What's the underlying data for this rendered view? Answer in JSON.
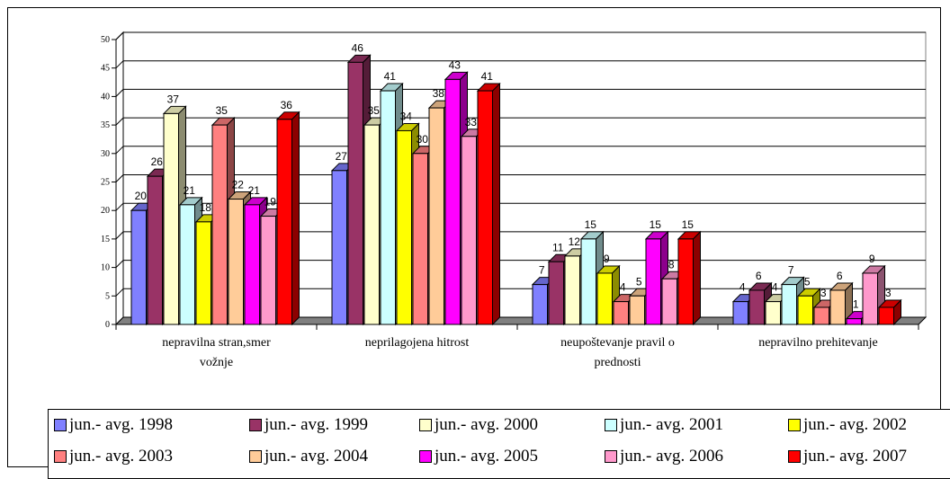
{
  "chart_data": {
    "type": "bar",
    "style": "3d-clustered-column",
    "categories": [
      [
        "nepravilna stran,smer",
        "vožnje"
      ],
      [
        "neprilagojena hitrost"
      ],
      [
        "neupoštevanje pravil o",
        "prednosti"
      ],
      [
        "nepravilno prehitevanje"
      ]
    ],
    "y_ticks": [
      "0",
      "5",
      "10",
      "15",
      "20",
      "25",
      "30",
      "35",
      "40",
      "45",
      "50"
    ],
    "ylim": [
      0,
      50
    ],
    "grid": true,
    "legend_position": "bottom",
    "series": [
      {
        "name": "jun.- avg. 1998",
        "color": "#8080ff",
        "values": [
          20,
          27,
          7,
          4
        ],
        "labels": [
          "20",
          "27",
          "7",
          "4"
        ]
      },
      {
        "name": "jun.- avg. 1999",
        "color": "#993366",
        "values": [
          26,
          46,
          11,
          6
        ],
        "labels": [
          "26",
          "46",
          "11",
          "6"
        ]
      },
      {
        "name": "jun.- avg. 2000",
        "color": "#ffffcc",
        "values": [
          37,
          35,
          12,
          4
        ],
        "labels": [
          "37",
          "35",
          "12",
          "4"
        ]
      },
      {
        "name": "jun.- avg. 2001",
        "color": "#ccffff",
        "values": [
          21,
          41,
          15,
          7
        ],
        "labels": [
          "21",
          "41",
          "15",
          "7"
        ]
      },
      {
        "name": "jun.- avg. 2002",
        "color": "#ffff00",
        "values": [
          18,
          34,
          9,
          5
        ],
        "labels": [
          "18",
          "34",
          "9",
          "5"
        ]
      },
      {
        "name": "jun.- avg. 2003",
        "color": "#ff8080",
        "values": [
          35,
          30,
          4,
          3
        ],
        "labels": [
          "35",
          "30",
          "4",
          "3"
        ]
      },
      {
        "name": "jun.- avg. 2004",
        "color": "#ffcc99",
        "values": [
          22,
          38,
          5,
          6
        ],
        "labels": [
          "22",
          "38",
          "5",
          "6"
        ]
      },
      {
        "name": "jun.- avg. 2005",
        "color": "#ff00ff",
        "values": [
          21,
          43,
          15,
          1
        ],
        "labels": [
          "21",
          "43",
          "15",
          "1"
        ]
      },
      {
        "name": "jun.- avg. 2006",
        "color": "#ff99cc",
        "values": [
          19,
          33,
          8,
          9
        ],
        "labels": [
          "19",
          "33",
          "8",
          "9"
        ]
      },
      {
        "name": "jun.- avg. 2007",
        "color": "#ff0000",
        "values": [
          36,
          41,
          15,
          3
        ],
        "labels": [
          "36",
          "41",
          "15",
          "3"
        ]
      }
    ]
  }
}
